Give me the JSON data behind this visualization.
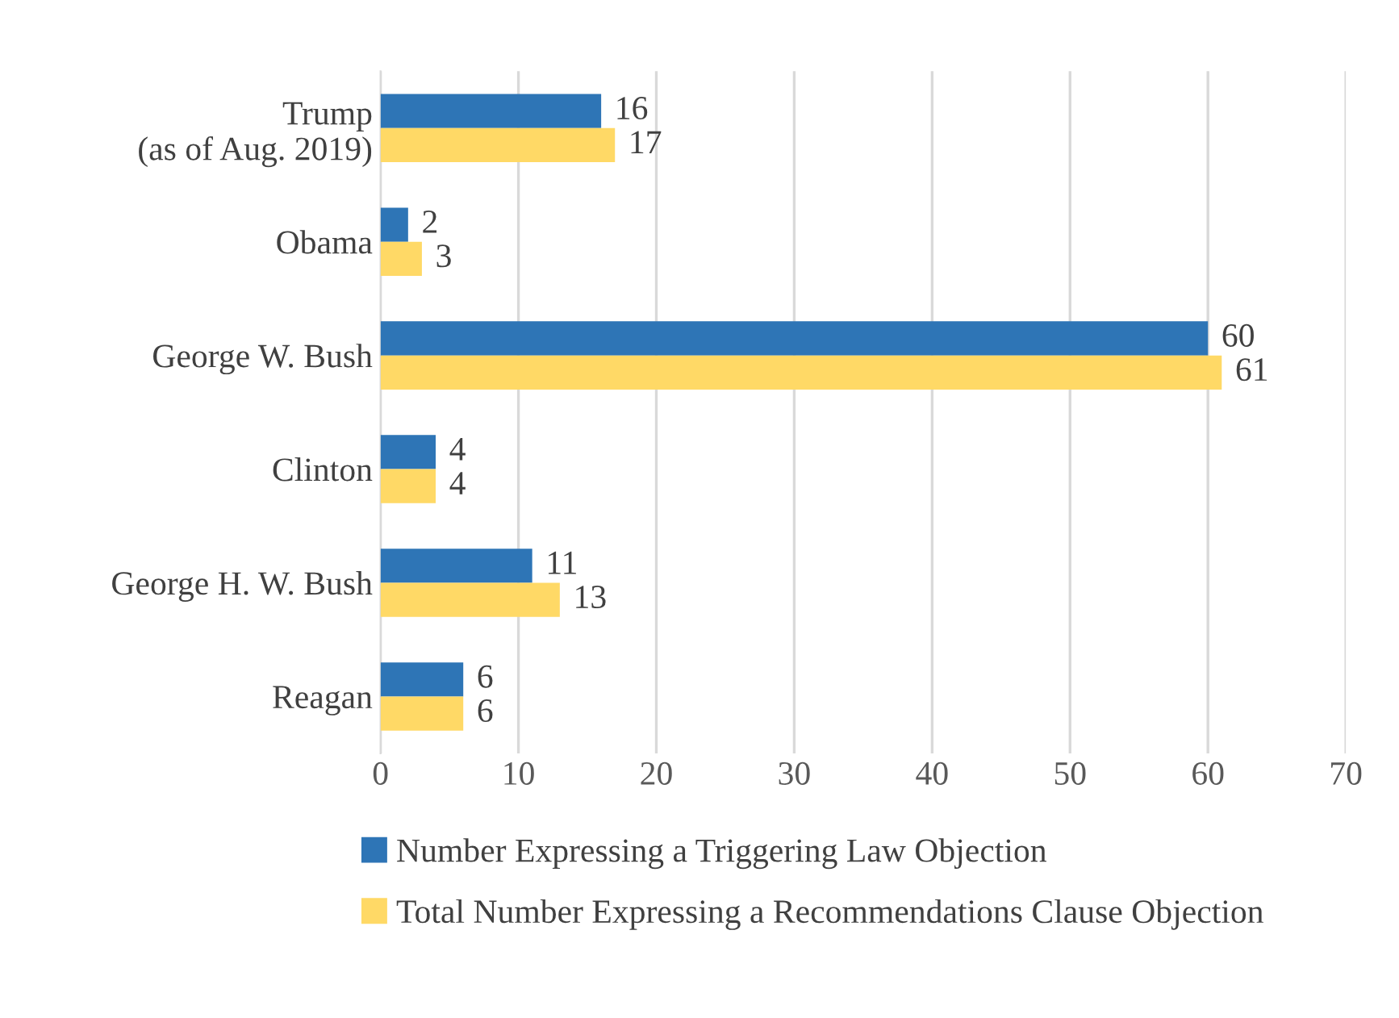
{
  "chart_data": {
    "type": "bar",
    "orientation": "horizontal",
    "categories": [
      "Trump\n(as of Aug. 2019)",
      "Obama",
      "George W. Bush",
      "Clinton",
      "George H. W. Bush",
      "Reagan"
    ],
    "series": [
      {
        "name": "Number Expressing a Triggering Law Objection",
        "color": "#2e75b6",
        "values": [
          16,
          2,
          60,
          4,
          11,
          6
        ]
      },
      {
        "name": "Total Number Expressing a Recommendations Clause Objection",
        "color": "#ffd966",
        "values": [
          17,
          3,
          61,
          4,
          13,
          6
        ]
      }
    ],
    "xlim": [
      0,
      70
    ],
    "xticks": [
      0,
      10,
      20,
      30,
      40,
      50,
      60,
      70
    ],
    "grid": "x",
    "legend": "bottom",
    "data_labels": true
  }
}
